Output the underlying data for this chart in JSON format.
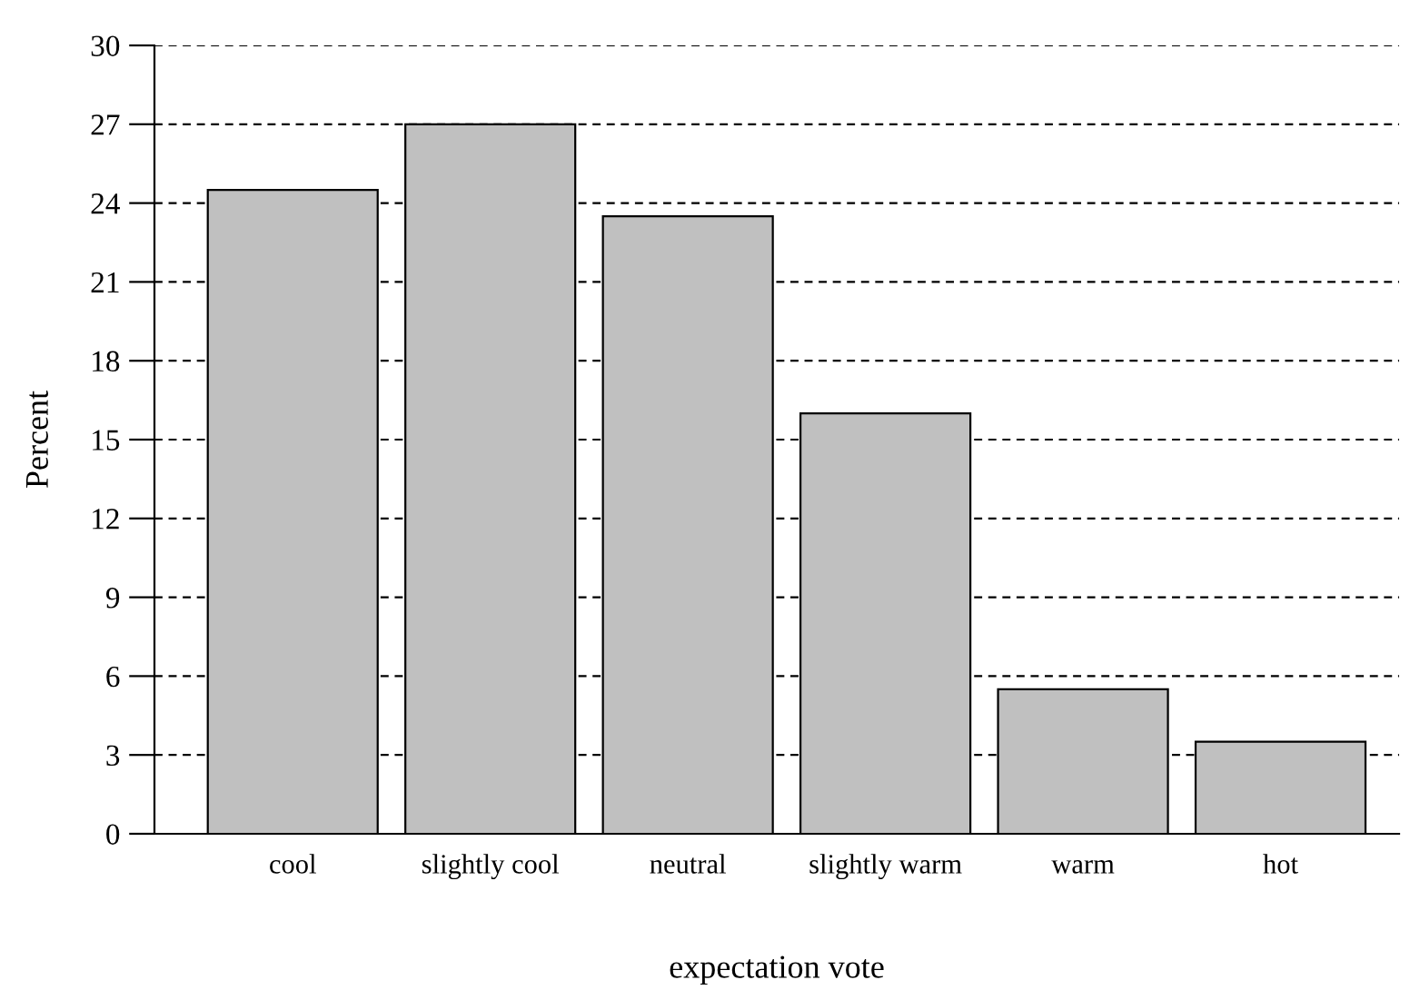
{
  "chart_data": {
    "type": "bar",
    "xlabel": "expectation vote",
    "ylabel": "Percent",
    "categories": [
      "cool",
      "slightly cool",
      "neutral",
      "slightly warm",
      "warm",
      "hot"
    ],
    "values": [
      24.5,
      27,
      23.5,
      16,
      5.5,
      3.5
    ],
    "color": "#c0c0c0",
    "ylim": [
      0,
      30
    ],
    "yticks": [
      0,
      3,
      6,
      9,
      12,
      15,
      18,
      21,
      24,
      27,
      30
    ],
    "grid": "y",
    "legend": false
  }
}
